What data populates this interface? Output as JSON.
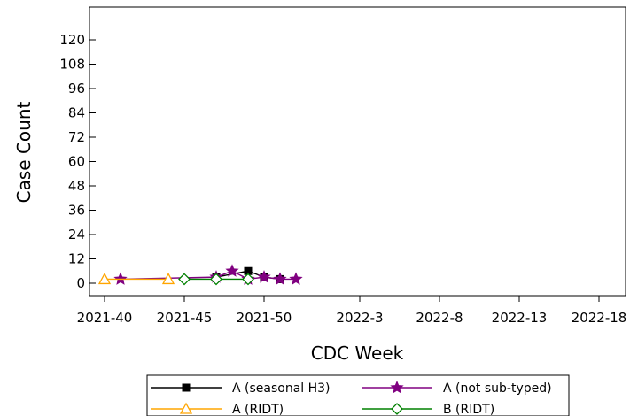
{
  "chart_data": {
    "type": "line",
    "title": "",
    "xlabel": "CDC Week",
    "ylabel": "Case Count",
    "x_ticks": [
      "2021-40",
      "2021-45",
      "2021-50",
      "2022-3",
      "2022-8",
      "2022-13",
      "2022-18"
    ],
    "y_ticks": [
      0,
      12,
      24,
      36,
      48,
      60,
      72,
      84,
      96,
      108,
      120
    ],
    "ylim": [
      0,
      132
    ],
    "grid": false,
    "legend_position": "bottom",
    "series": [
      {
        "name": "A (seasonal H3)",
        "color": "#000000",
        "marker": "square",
        "points": [
          {
            "week": "2021-47",
            "value": 3
          },
          {
            "week": "2021-49",
            "value": 6
          },
          {
            "week": "2021-50",
            "value": 3
          },
          {
            "week": "2021-51",
            "value": 2
          }
        ]
      },
      {
        "name": "A (not sub-typed)",
        "color": "#800080",
        "marker": "star",
        "points": [
          {
            "week": "2021-41",
            "value": 2
          },
          {
            "week": "2021-47",
            "value": 3
          },
          {
            "week": "2021-48",
            "value": 6
          },
          {
            "week": "2021-49",
            "value": 2
          },
          {
            "week": "2021-50",
            "value": 3
          },
          {
            "week": "2021-51",
            "value": 2
          },
          {
            "week": "2021-52",
            "value": 2
          }
        ]
      },
      {
        "name": "A (RIDT)",
        "color": "#FFA500",
        "marker": "triangle",
        "points": [
          {
            "week": "2021-40",
            "value": 2
          },
          {
            "week": "2021-44",
            "value": 2
          }
        ]
      },
      {
        "name": "B (RIDT)",
        "color": "#008000",
        "marker": "diamond",
        "points": [
          {
            "week": "2021-45",
            "value": 2
          },
          {
            "week": "2021-47",
            "value": 2
          },
          {
            "week": "2021-49",
            "value": 2
          }
        ]
      }
    ]
  }
}
